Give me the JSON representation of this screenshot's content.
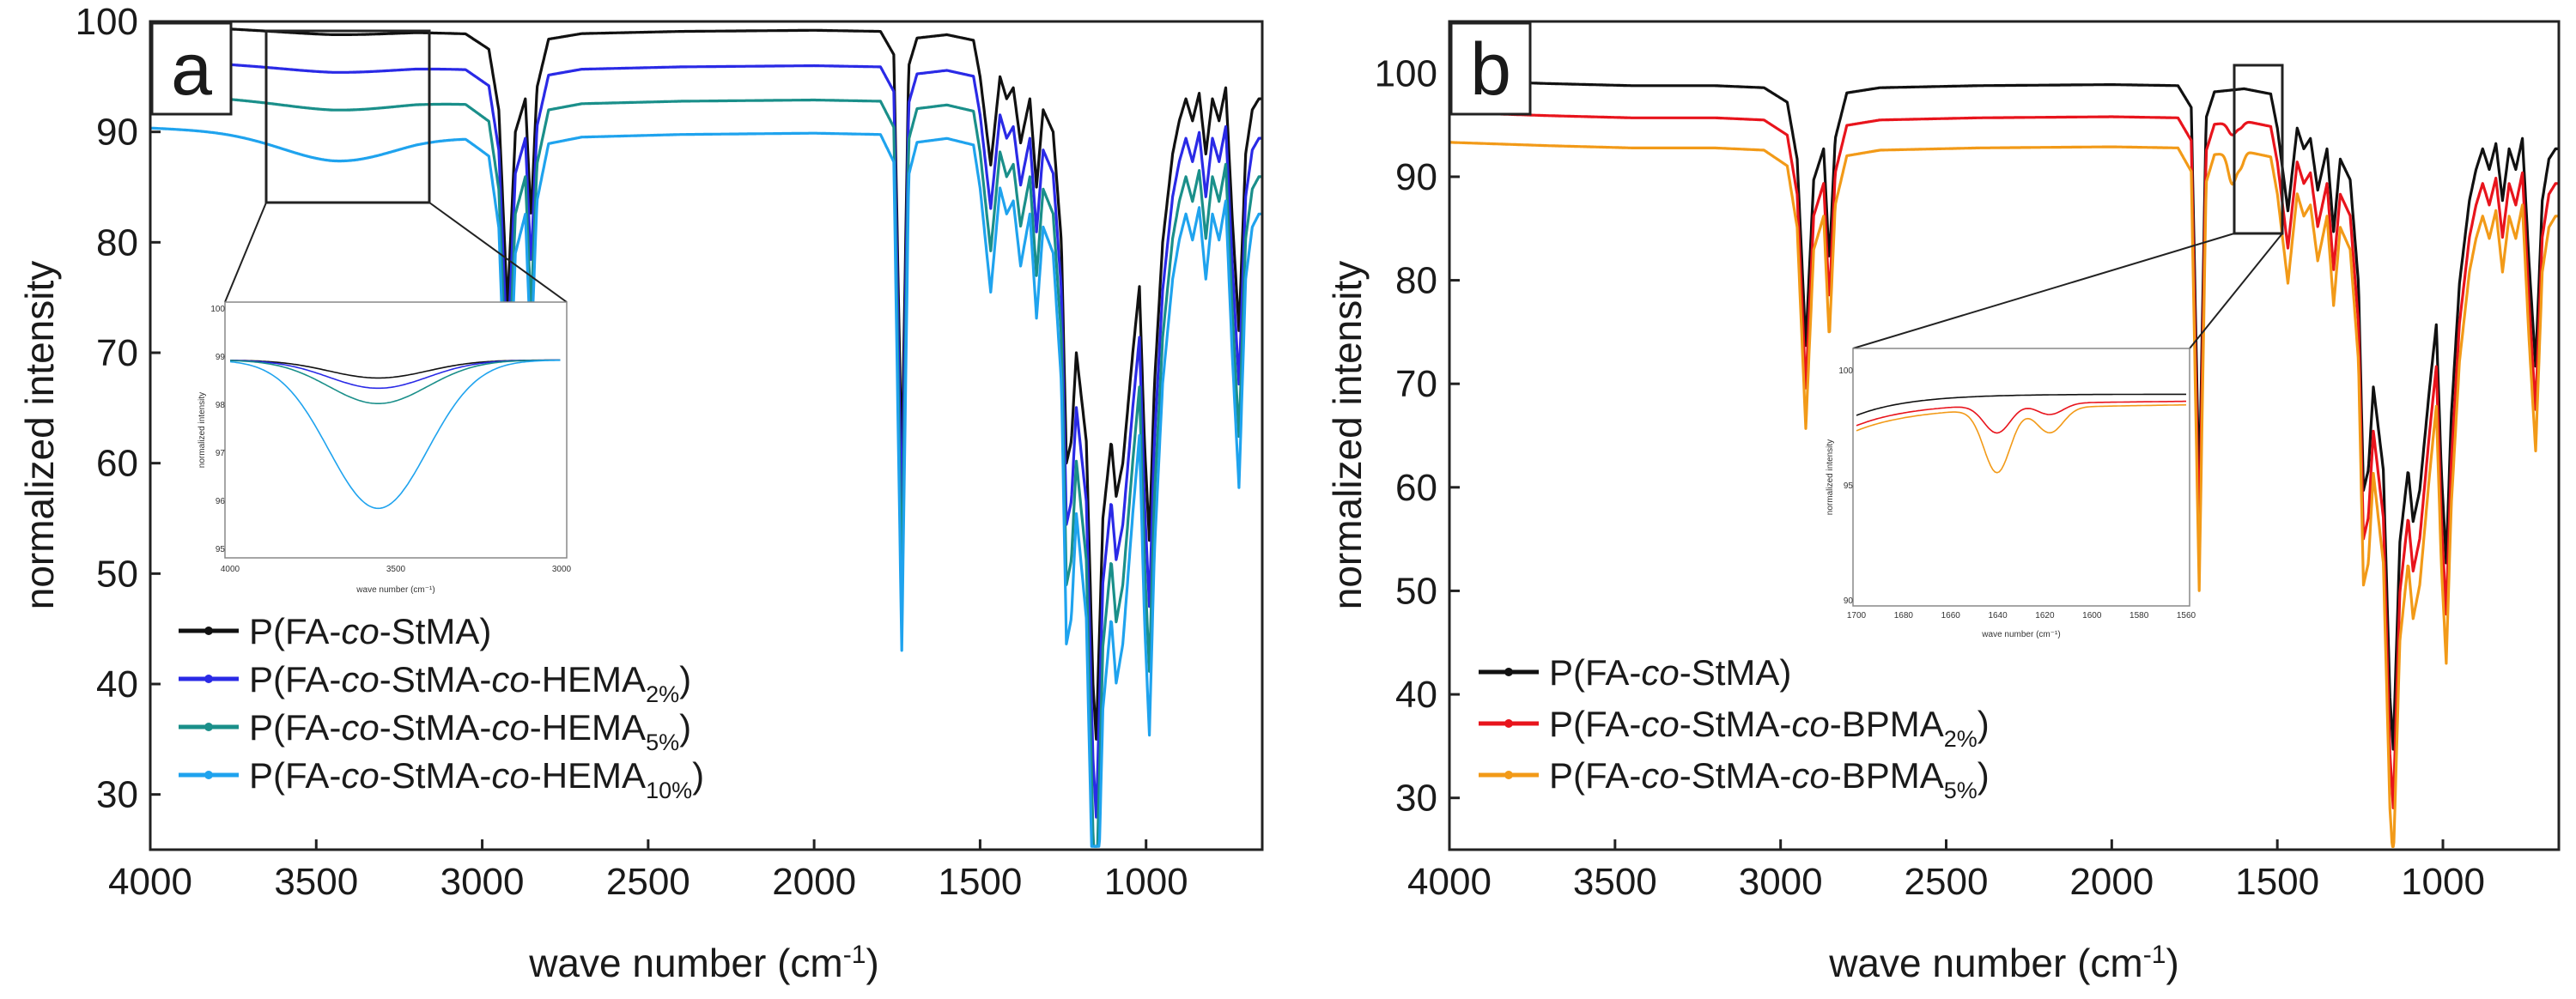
{
  "chart_data": [
    {
      "panel": "a",
      "type": "line",
      "xlabel": "wave number (cm⁻¹)",
      "ylabel": "normalized intensity",
      "xlim": [
        4000,
        650
      ],
      "ylim": [
        25,
        100
      ],
      "xticks": [
        4000,
        3500,
        3000,
        2500,
        2000,
        1500,
        1000
      ],
      "yticks": [
        30,
        40,
        50,
        60,
        70,
        80,
        90,
        100
      ],
      "legend_position": "lower-left",
      "series": [
        {
          "name": "P(FA-co-StMA)",
          "legend": {
            "pre": "P(FA-",
            "co1": "co",
            "mid": "-StMA)",
            "co2": "",
            "post": "",
            "sub": "",
            "close": ""
          },
          "color": "#111111",
          "baseline": 99.3,
          "depth": 1.0,
          "points": [
            [
              4000,
              99.6
            ],
            [
              3700,
              99.3
            ],
            [
              3450,
              99.1
            ],
            [
              3200,
              99.1
            ],
            [
              3050,
              98.9
            ],
            [
              2980,
              97.5
            ],
            [
              2950,
              92
            ],
            [
              2924,
              74
            ],
            [
              2900,
              90
            ],
            [
              2870,
              93
            ],
            [
              2853,
              82
            ],
            [
              2835,
              94
            ],
            [
              2800,
              98.4
            ],
            [
              2700,
              98.9
            ],
            [
              2400,
              99.1
            ],
            [
              2000,
              99.2
            ],
            [
              1800,
              99.1
            ],
            [
              1760,
              97
            ],
            [
              1736,
              59.5
            ],
            [
              1715,
              96
            ],
            [
              1690,
              98.5
            ],
            [
              1600,
              98.8
            ],
            [
              1520,
              98.3
            ],
            [
              1500,
              95
            ],
            [
              1468,
              87
            ],
            [
              1440,
              95
            ],
            [
              1420,
              93
            ],
            [
              1400,
              94
            ],
            [
              1378,
              89
            ],
            [
              1350,
              93
            ],
            [
              1330,
              85
            ],
            [
              1310,
              92
            ],
            [
              1280,
              90
            ],
            [
              1255,
              80
            ],
            [
              1240,
              60
            ],
            [
              1225,
              62
            ],
            [
              1210,
              70
            ],
            [
              1195,
              66
            ],
            [
              1180,
              62
            ],
            [
              1160,
              40
            ],
            [
              1150,
              35
            ],
            [
              1130,
              55
            ],
            [
              1105,
              62
            ],
            [
              1090,
              57
            ],
            [
              1070,
              60
            ],
            [
              1040,
              70
            ],
            [
              1020,
              76
            ],
            [
              1005,
              62
            ],
            [
              990,
              53
            ],
            [
              975,
              67
            ],
            [
              950,
              80
            ],
            [
              920,
              88
            ],
            [
              900,
              91
            ],
            [
              880,
              93
            ],
            [
              860,
              91
            ],
            [
              840,
              93.5
            ],
            [
              820,
              88
            ],
            [
              800,
              93
            ],
            [
              780,
              91
            ],
            [
              760,
              94
            ],
            [
              740,
              82
            ],
            [
              720,
              72
            ],
            [
              700,
              88
            ],
            [
              680,
              92
            ],
            [
              660,
              93
            ]
          ]
        },
        {
          "name": "P(FA-co-StMA-co-HEMA2%)",
          "legend": {
            "pre": "P(FA-",
            "co1": "co",
            "mid": "-StMA-",
            "co2": "co",
            "post": "-HEMA",
            "sub": "2%",
            "close": ")"
          },
          "color": "#2a2ae6",
          "baseline": 96.1,
          "depth": 1.06
        },
        {
          "name": "P(FA-co-StMA-co-HEMA5%)",
          "legend": {
            "pre": "P(FA-",
            "co1": "co",
            "mid": "-StMA-",
            "co2": "co",
            "post": "-HEMA",
            "sub": "5%",
            "close": ")"
          },
          "color": "#1a8f8a",
          "baseline": 93.0,
          "depth": 1.12
        },
        {
          "name": "P(FA-co-StMA-co-HEMA10%)",
          "legend": {
            "pre": "P(FA-",
            "co1": "co",
            "mid": "-StMA-",
            "co2": "co",
            "post": "-HEMA",
            "sub": "10%",
            "close": ")"
          },
          "color": "#1fa3ee",
          "baseline": 90.0,
          "depth": 1.18
        }
      ],
      "oh_band_depth": [
        0.3,
        0.5,
        0.8,
        2.4
      ],
      "inset": {
        "x_ticks": [
          "4000",
          "3500",
          "3000"
        ],
        "y_ticks": [
          "100",
          "99",
          "98",
          "97",
          "96",
          "95"
        ],
        "xlabel": "wave number (cm⁻¹)",
        "ylabel": "normalized intensity",
        "source_range": [
          3650,
          3180
        ]
      }
    },
    {
      "panel": "b",
      "type": "line",
      "xlabel": "wave number (cm⁻¹)",
      "ylabel": "normalized intensity",
      "xlim": [
        4000,
        650
      ],
      "ylim": [
        25,
        105
      ],
      "xticks": [
        4000,
        3500,
        3000,
        2500,
        2000,
        1500,
        1000
      ],
      "yticks": [
        30,
        40,
        50,
        60,
        70,
        80,
        90,
        100
      ],
      "legend_position": "lower-left",
      "series": [
        {
          "name": "P(FA-co-StMA)",
          "legend": {
            "pre": "P(FA-",
            "co1": "co",
            "mid": "-StMA)",
            "co2": "",
            "post": "",
            "sub": "",
            "close": ""
          },
          "color": "#111111",
          "baseline": 99.0,
          "depth": 1.0,
          "c_band": 0.0
        },
        {
          "name": "P(FA-co-StMA-co-BPMA2%)",
          "legend": {
            "pre": "P(FA-",
            "co1": "co",
            "mid": "-StMA-",
            "co2": "co",
            "post": "-BPMA",
            "sub": "2%",
            "close": ")"
          },
          "color": "#e8141c",
          "baseline": 95.9,
          "depth": 1.04,
          "c_band": 1.2
        },
        {
          "name": "P(FA-co-StMA-co-BPMA5%)",
          "legend": {
            "pre": "P(FA-",
            "co1": "co",
            "mid": "-StMA-",
            "co2": "co",
            "post": "-BPMA",
            "sub": "5%",
            "close": ")"
          },
          "color": "#f29a18",
          "baseline": 93.0,
          "depth": 1.08,
          "c_band": 3.0
        }
      ],
      "inset": {
        "x_ticks": [
          "1700",
          "1680",
          "1660",
          "1640",
          "1620",
          "1600",
          "1580",
          "1560"
        ],
        "y_ticks": [
          "100",
          "95",
          "90"
        ],
        "xlabel": "wave number (cm⁻¹)",
        "ylabel": "normalized intensity",
        "source_range": [
          1700,
          1550
        ]
      }
    }
  ]
}
